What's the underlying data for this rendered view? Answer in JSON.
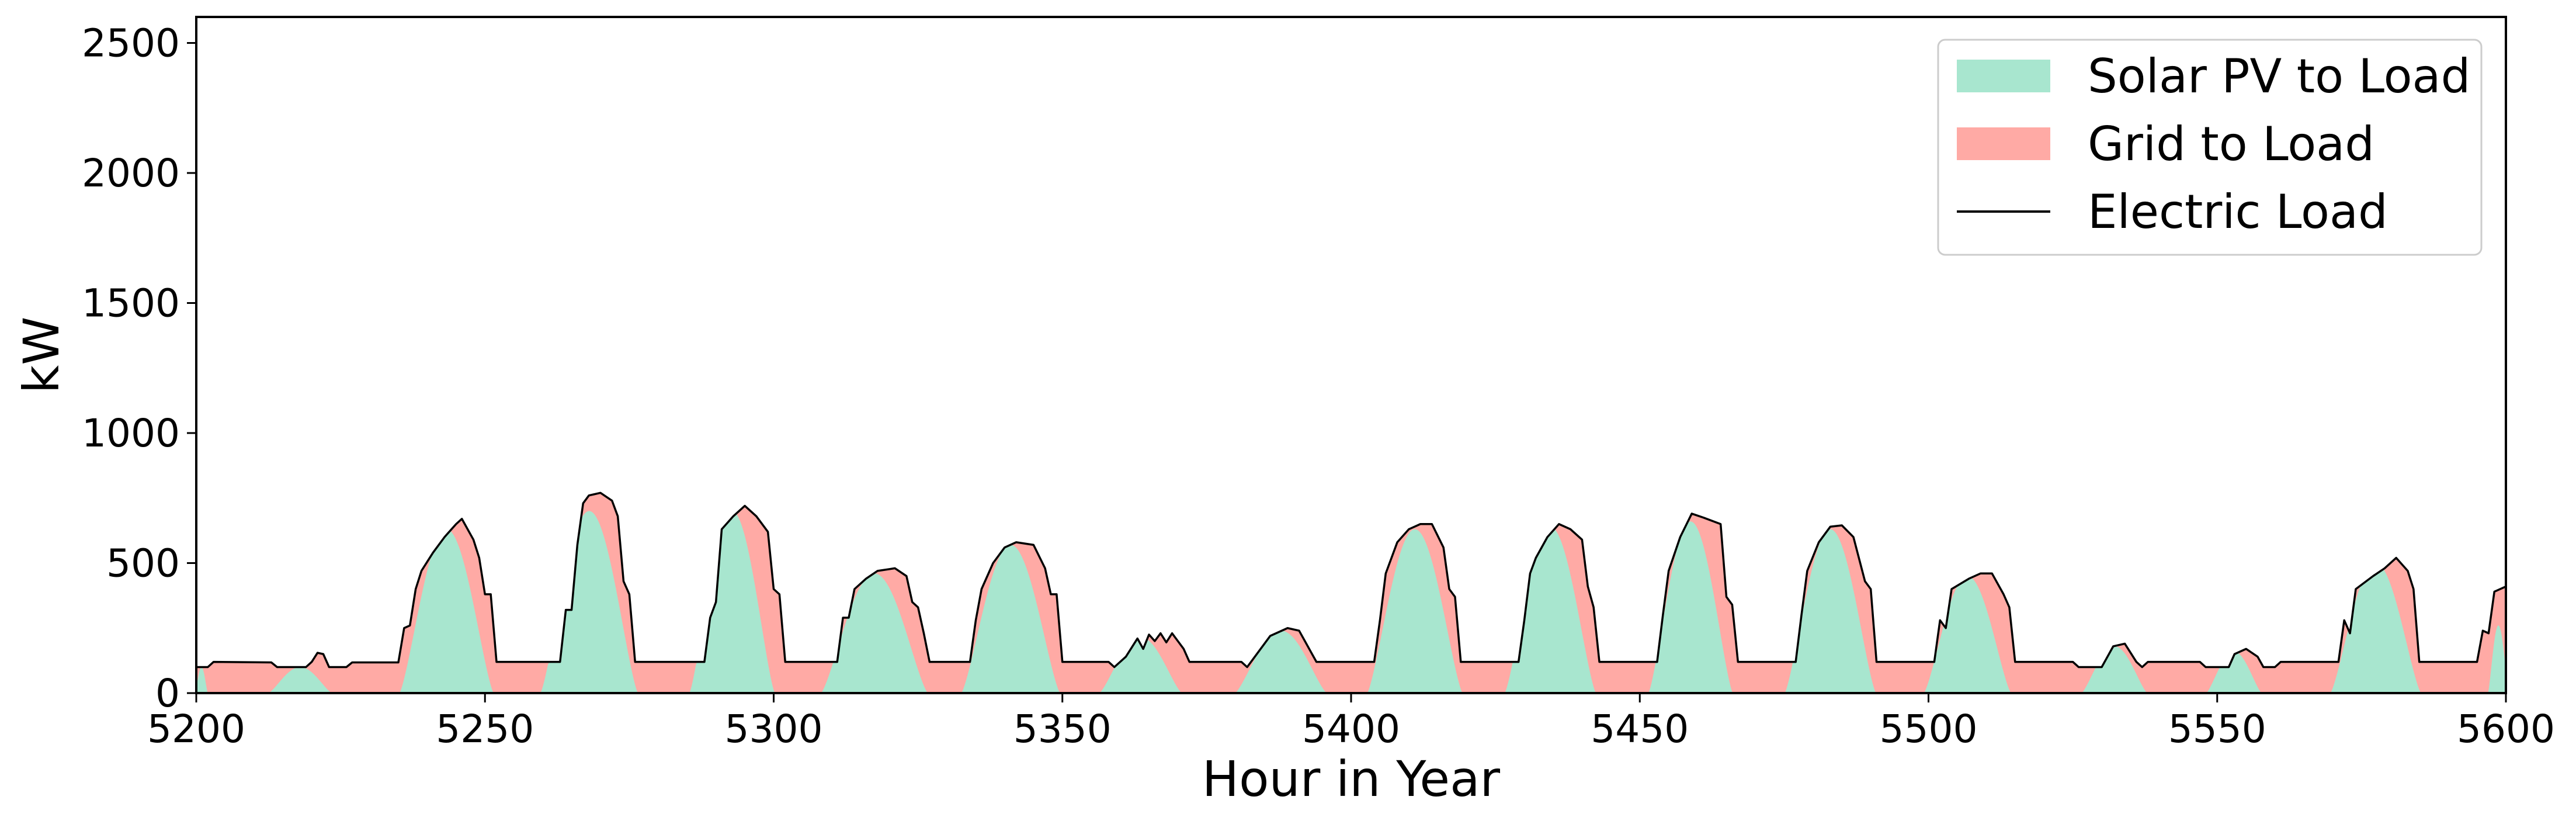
{
  "chart_data": {
    "type": "area",
    "xlabel": "Hour in Year",
    "ylabel": "kW",
    "xlim": [
      5200,
      5600
    ],
    "ylim": [
      0,
      2600
    ],
    "xticks": [
      5200,
      5250,
      5300,
      5350,
      5400,
      5450,
      5500,
      5550,
      5600
    ],
    "yticks": [
      0,
      500,
      1000,
      1500,
      2000,
      2500
    ],
    "grid": false,
    "legend_position": "top-right",
    "legend": [
      "Solar PV to Load",
      "Grid to Load",
      "Electric Load"
    ],
    "colors": {
      "solar": "#a8e6cf",
      "grid": "#ffaaa5",
      "load": "#000000"
    },
    "load_points": [
      [
        5200,
        100
      ],
      [
        5202,
        100
      ],
      [
        5203,
        120
      ],
      [
        5213,
        118
      ],
      [
        5214,
        100
      ],
      [
        5219,
        100
      ],
      [
        5220,
        120
      ],
      [
        5221,
        155
      ],
      [
        5222,
        150
      ],
      [
        5223,
        100
      ],
      [
        5226,
        100
      ],
      [
        5227,
        118
      ],
      [
        5235,
        118
      ],
      [
        5236,
        250
      ],
      [
        5237,
        260
      ],
      [
        5238,
        400
      ],
      [
        5239,
        470
      ],
      [
        5241,
        540
      ],
      [
        5243,
        600
      ],
      [
        5245,
        650
      ],
      [
        5246,
        670
      ],
      [
        5248,
        590
      ],
      [
        5249,
        520
      ],
      [
        5250,
        380
      ],
      [
        5251,
        380
      ],
      [
        5252,
        120
      ],
      [
        5263,
        120
      ],
      [
        5264,
        320
      ],
      [
        5265,
        320
      ],
      [
        5266,
        570
      ],
      [
        5267,
        730
      ],
      [
        5268,
        760
      ],
      [
        5270,
        770
      ],
      [
        5272,
        740
      ],
      [
        5273,
        680
      ],
      [
        5274,
        430
      ],
      [
        5275,
        380
      ],
      [
        5276,
        120
      ],
      [
        5288,
        120
      ],
      [
        5289,
        290
      ],
      [
        5290,
        350
      ],
      [
        5291,
        630
      ],
      [
        5293,
        680
      ],
      [
        5295,
        720
      ],
      [
        5297,
        680
      ],
      [
        5299,
        620
      ],
      [
        5300,
        400
      ],
      [
        5301,
        380
      ],
      [
        5302,
        120
      ],
      [
        5311,
        120
      ],
      [
        5312,
        290
      ],
      [
        5313,
        290
      ],
      [
        5314,
        400
      ],
      [
        5316,
        440
      ],
      [
        5318,
        470
      ],
      [
        5321,
        480
      ],
      [
        5323,
        450
      ],
      [
        5324,
        350
      ],
      [
        5325,
        330
      ],
      [
        5326,
        230
      ],
      [
        5327,
        120
      ],
      [
        5334,
        120
      ],
      [
        5335,
        280
      ],
      [
        5336,
        400
      ],
      [
        5338,
        500
      ],
      [
        5340,
        560
      ],
      [
        5342,
        580
      ],
      [
        5345,
        570
      ],
      [
        5347,
        480
      ],
      [
        5348,
        380
      ],
      [
        5349,
        380
      ],
      [
        5350,
        120
      ],
      [
        5358,
        120
      ],
      [
        5359,
        100
      ],
      [
        5361,
        140
      ],
      [
        5363,
        210
      ],
      [
        5364,
        170
      ],
      [
        5365,
        225
      ],
      [
        5366,
        200
      ],
      [
        5367,
        230
      ],
      [
        5368,
        195
      ],
      [
        5369,
        230
      ],
      [
        5370,
        200
      ],
      [
        5371,
        170
      ],
      [
        5372,
        120
      ],
      [
        5381,
        120
      ],
      [
        5382,
        100
      ],
      [
        5384,
        160
      ],
      [
        5386,
        220
      ],
      [
        5389,
        250
      ],
      [
        5391,
        240
      ],
      [
        5393,
        160
      ],
      [
        5394,
        120
      ],
      [
        5404,
        120
      ],
      [
        5405,
        280
      ],
      [
        5406,
        460
      ],
      [
        5408,
        580
      ],
      [
        5410,
        630
      ],
      [
        5412,
        650
      ],
      [
        5414,
        650
      ],
      [
        5416,
        560
      ],
      [
        5417,
        400
      ],
      [
        5418,
        370
      ],
      [
        5419,
        120
      ],
      [
        5429,
        120
      ],
      [
        5430,
        280
      ],
      [
        5431,
        460
      ],
      [
        5432,
        520
      ],
      [
        5434,
        600
      ],
      [
        5436,
        650
      ],
      [
        5438,
        630
      ],
      [
        5440,
        590
      ],
      [
        5441,
        410
      ],
      [
        5442,
        330
      ],
      [
        5443,
        120
      ],
      [
        5453,
        120
      ],
      [
        5454,
        300
      ],
      [
        5455,
        470
      ],
      [
        5457,
        600
      ],
      [
        5459,
        690
      ],
      [
        5461,
        675
      ],
      [
        5464,
        650
      ],
      [
        5465,
        370
      ],
      [
        5466,
        340
      ],
      [
        5467,
        120
      ],
      [
        5477,
        120
      ],
      [
        5478,
        300
      ],
      [
        5479,
        470
      ],
      [
        5481,
        580
      ],
      [
        5483,
        640
      ],
      [
        5485,
        645
      ],
      [
        5487,
        600
      ],
      [
        5489,
        430
      ],
      [
        5490,
        400
      ],
      [
        5491,
        120
      ],
      [
        5501,
        120
      ],
      [
        5502,
        280
      ],
      [
        5503,
        250
      ],
      [
        5504,
        400
      ],
      [
        5507,
        440
      ],
      [
        5509,
        460
      ],
      [
        5511,
        460
      ],
      [
        5513,
        380
      ],
      [
        5514,
        330
      ],
      [
        5515,
        120
      ],
      [
        5525,
        120
      ],
      [
        5526,
        100
      ],
      [
        5530,
        100
      ],
      [
        5531,
        140
      ],
      [
        5532,
        180
      ],
      [
        5534,
        190
      ],
      [
        5536,
        120
      ],
      [
        5537,
        100
      ],
      [
        5538,
        120
      ],
      [
        5547,
        120
      ],
      [
        5548,
        100
      ],
      [
        5552,
        100
      ],
      [
        5553,
        150
      ],
      [
        5555,
        170
      ],
      [
        5557,
        140
      ],
      [
        5558,
        100
      ],
      [
        5560,
        100
      ],
      [
        5561,
        120
      ],
      [
        5571,
        120
      ],
      [
        5572,
        280
      ],
      [
        5573,
        230
      ],
      [
        5574,
        400
      ],
      [
        5577,
        450
      ],
      [
        5579,
        480
      ],
      [
        5581,
        520
      ],
      [
        5583,
        470
      ],
      [
        5584,
        400
      ],
      [
        5585,
        120
      ],
      [
        5595,
        120
      ],
      [
        5596,
        240
      ],
      [
        5597,
        230
      ],
      [
        5598,
        390
      ],
      [
        5600,
        410
      ]
    ],
    "solar_humps": [
      [
        5199.8,
        5202.0,
        100
      ],
      [
        5212.5,
        5223.5,
        100
      ],
      [
        5235.2,
        5251.5,
        630
      ],
      [
        5259.6,
        5276.5,
        700
      ],
      [
        5285.4,
        5300.2,
        700
      ],
      [
        5308.2,
        5326.7,
        460
      ],
      [
        5332.5,
        5349.6,
        570
      ],
      [
        5356.4,
        5370.7,
        215
      ],
      [
        5379.9,
        5395.8,
        240
      ],
      [
        5402.8,
        5419.3,
        630
      ],
      [
        5426.6,
        5442.4,
        640
      ],
      [
        5451.5,
        5466.1,
        660
      ],
      [
        5475.1,
        5490.9,
        630
      ],
      [
        5499.2,
        5514.3,
        450
      ],
      [
        5526.5,
        5537.9,
        180
      ],
      [
        5548.1,
        5557.7,
        160
      ],
      [
        5569.6,
        5585.3,
        500
      ],
      [
        5596.9,
        5600.5,
        260
      ]
    ]
  }
}
